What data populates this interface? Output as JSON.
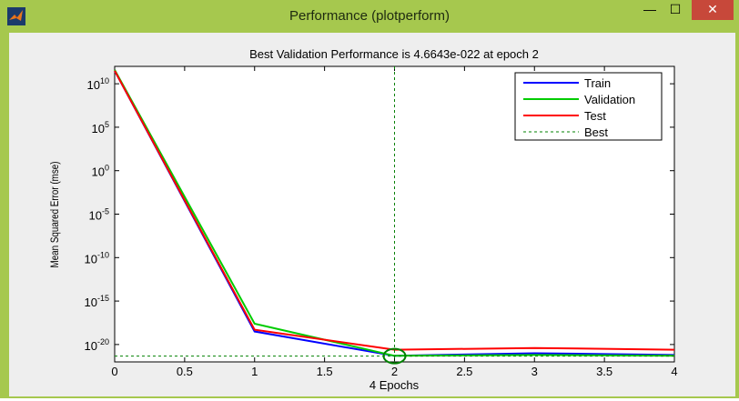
{
  "window": {
    "title": "Performance (plotperform)",
    "icon": "matlab-icon",
    "controls": {
      "minimize": "—",
      "maximize": "☐",
      "close": "✕"
    }
  },
  "colors": {
    "frame": "#a6c84e",
    "train": "#0000ff",
    "validation": "#00cc00",
    "test": "#ff0000",
    "best": "#008000"
  },
  "chart_data": {
    "type": "line",
    "title": "Best Validation Performance is 4.6643e-022 at epoch 2",
    "xlabel": "4 Epochs",
    "ylabel": "Mean Squared Error  (mse)",
    "xlim": [
      0,
      4
    ],
    "ylim_exp": [
      -22,
      12
    ],
    "yscale": "log",
    "xticks": [
      "0",
      "0.5",
      "1",
      "1.5",
      "2",
      "2.5",
      "3",
      "3.5",
      "4"
    ],
    "yticks": [
      {
        "base": "10",
        "exp": "10",
        "e": 10
      },
      {
        "base": "10",
        "exp": "5",
        "e": 5
      },
      {
        "base": "10",
        "exp": "0",
        "e": 0
      },
      {
        "base": "10",
        "exp": "-5",
        "e": -5
      },
      {
        "base": "10",
        "exp": "-10",
        "e": -10
      },
      {
        "base": "10",
        "exp": "-15",
        "e": -15
      },
      {
        "base": "10",
        "exp": "-20",
        "e": -20
      }
    ],
    "x": [
      0,
      1,
      2,
      3,
      4
    ],
    "series": [
      {
        "name": "Train",
        "color": "#0000ff",
        "log10_values": [
          11.5,
          -18.5,
          -21.3,
          -21.0,
          -21.2
        ]
      },
      {
        "name": "Validation",
        "color": "#00cc00",
        "log10_values": [
          11.6,
          -17.6,
          -21.3,
          -21.2,
          -21.3
        ]
      },
      {
        "name": "Test",
        "color": "#ff0000",
        "log10_values": [
          11.5,
          -18.3,
          -20.6,
          -20.4,
          -20.6
        ]
      }
    ],
    "best": {
      "name": "Best",
      "epoch": 2,
      "log10_value": -21.33,
      "color": "#008000"
    },
    "legend": [
      "Train",
      "Validation",
      "Test",
      "Best"
    ],
    "legend_position": "top-right",
    "grid": false
  }
}
